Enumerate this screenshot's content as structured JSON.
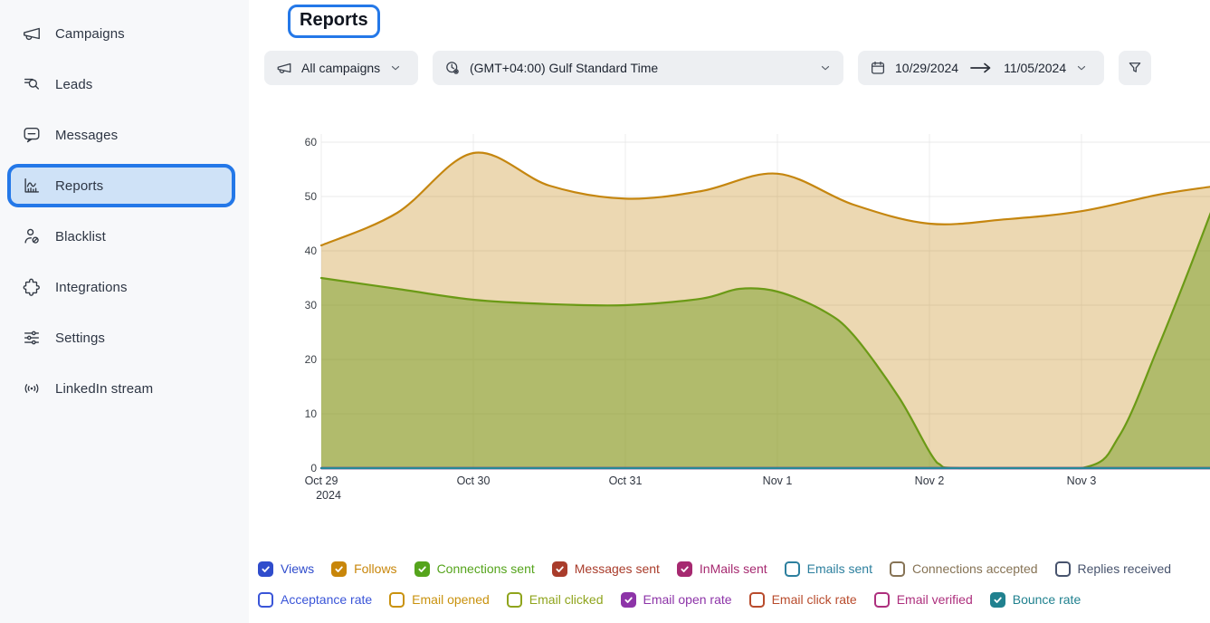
{
  "header": {
    "title": "Reports"
  },
  "sidebar": {
    "items": [
      {
        "id": "campaigns",
        "label": "Campaigns",
        "icon": "megaphone",
        "active": false
      },
      {
        "id": "leads",
        "label": "Leads",
        "icon": "leads-search",
        "active": false
      },
      {
        "id": "messages",
        "label": "Messages",
        "icon": "chat-bubble",
        "active": false
      },
      {
        "id": "reports",
        "label": "Reports",
        "icon": "bar-chart",
        "active": true
      },
      {
        "id": "blacklist",
        "label": "Blacklist",
        "icon": "user-block",
        "active": false
      },
      {
        "id": "integrations",
        "label": "Integrations",
        "icon": "puzzle",
        "active": false
      },
      {
        "id": "settings",
        "label": "Settings",
        "icon": "sliders",
        "active": false
      },
      {
        "id": "linkedin-stream",
        "label": "LinkedIn stream",
        "icon": "broadcast",
        "active": false
      }
    ]
  },
  "filters": {
    "campaigns": {
      "label": "All campaigns"
    },
    "timezone": {
      "label": "(GMT+04:00) Gulf Standard Time"
    },
    "date_range": {
      "start": "10/29/2024",
      "end": "11/05/2024"
    }
  },
  "colors": {
    "accent": "#2478e8",
    "highlight_bg": "#cfe2f7",
    "sidebar_bg": "#f7f8fa",
    "button_bg": "#edeff2"
  },
  "chart_data": {
    "type": "area",
    "x_axis": {
      "unit": "day",
      "tick_days": [
        0,
        1,
        2,
        3,
        4,
        5
      ],
      "tick_labels": [
        "Oct 29",
        "Oct 30",
        "Oct 31",
        "Nov 1",
        "Nov 2",
        "Nov 3"
      ],
      "first_tick_sub_label": "2024",
      "domain": [
        0,
        5.85
      ]
    },
    "y_axis": {
      "ticks": [
        0,
        10,
        20,
        30,
        40,
        50,
        60
      ],
      "range": [
        0,
        60
      ]
    },
    "grid": true,
    "series": [
      {
        "name": "Follows",
        "color": "#c5860f",
        "fill_opacity": 0.32,
        "points": [
          [
            0,
            41
          ],
          [
            0.5,
            47
          ],
          [
            1,
            58
          ],
          [
            1.5,
            52
          ],
          [
            2,
            49.6
          ],
          [
            2.5,
            51
          ],
          [
            3,
            54.2
          ],
          [
            3.5,
            48.5
          ],
          [
            4,
            45
          ],
          [
            4.5,
            45.8
          ],
          [
            5,
            47.3
          ],
          [
            5.5,
            50.3
          ],
          [
            5.85,
            51.8
          ]
        ]
      },
      {
        "name": "Connections sent",
        "color": "#6b9a16",
        "fill_opacity": 0.45,
        "points": [
          [
            0,
            35
          ],
          [
            0.5,
            33
          ],
          [
            1,
            31
          ],
          [
            1.5,
            30.2
          ],
          [
            2,
            30
          ],
          [
            2.5,
            31.2
          ],
          [
            2.75,
            33
          ],
          [
            3,
            32.5
          ],
          [
            3.3,
            29
          ],
          [
            3.5,
            24.5
          ],
          [
            3.8,
            13
          ],
          [
            4.05,
            1
          ],
          [
            4.2,
            0
          ],
          [
            5,
            0
          ],
          [
            5.25,
            6
          ],
          [
            5.5,
            22
          ],
          [
            5.7,
            36
          ],
          [
            5.85,
            47
          ]
        ]
      },
      {
        "name": "Views",
        "color": "#2f4ccc",
        "fill_opacity": 0,
        "points": [
          [
            0,
            0
          ],
          [
            5.85,
            0
          ]
        ]
      },
      {
        "name": "Messages sent",
        "color": "#a93c2b",
        "fill_opacity": 0,
        "points": [
          [
            0,
            0
          ],
          [
            5.85,
            0
          ]
        ]
      },
      {
        "name": "InMails sent",
        "color": "#a62970",
        "fill_opacity": 0,
        "points": [
          [
            0,
            0
          ],
          [
            5.85,
            0
          ]
        ]
      },
      {
        "name": "Email open rate",
        "color": "#8d34a8",
        "fill_opacity": 0,
        "points": [
          [
            0,
            0
          ],
          [
            5.85,
            0
          ]
        ]
      },
      {
        "name": "Bounce rate",
        "color": "#26879a",
        "fill_opacity": 0,
        "points": [
          [
            0,
            0
          ],
          [
            5.85,
            0
          ]
        ]
      }
    ]
  },
  "legend": {
    "rows": [
      [
        {
          "label": "Views",
          "color": "#2f4ccc",
          "checked": true
        },
        {
          "label": "Follows",
          "color": "#c8860a",
          "checked": true
        },
        {
          "label": "Connections sent",
          "color": "#55a41c",
          "checked": true
        },
        {
          "label": "Messages sent",
          "color": "#a93c2b",
          "checked": true
        },
        {
          "label": "InMails sent",
          "color": "#a62970",
          "checked": true
        },
        {
          "label": "Emails sent",
          "color": "#2c7f9e",
          "checked": false
        },
        {
          "label": "Connections accepted",
          "color": "#867355",
          "checked": false
        },
        {
          "label": "Replies received",
          "color": "#47536d",
          "checked": false
        }
      ],
      [
        {
          "label": "Acceptance rate",
          "color": "#3a55d8",
          "checked": false
        },
        {
          "label": "Email opened",
          "color": "#c9920e",
          "checked": false
        },
        {
          "label": "Email clicked",
          "color": "#8fa41c",
          "checked": false
        },
        {
          "label": "Email open rate",
          "color": "#8d34a8",
          "checked": true
        },
        {
          "label": "Email click rate",
          "color": "#b84b2c",
          "checked": false
        },
        {
          "label": "Email verified",
          "color": "#ad2f7d",
          "checked": false
        },
        {
          "label": "Bounce rate",
          "color": "#20818f",
          "checked": true
        }
      ]
    ]
  }
}
